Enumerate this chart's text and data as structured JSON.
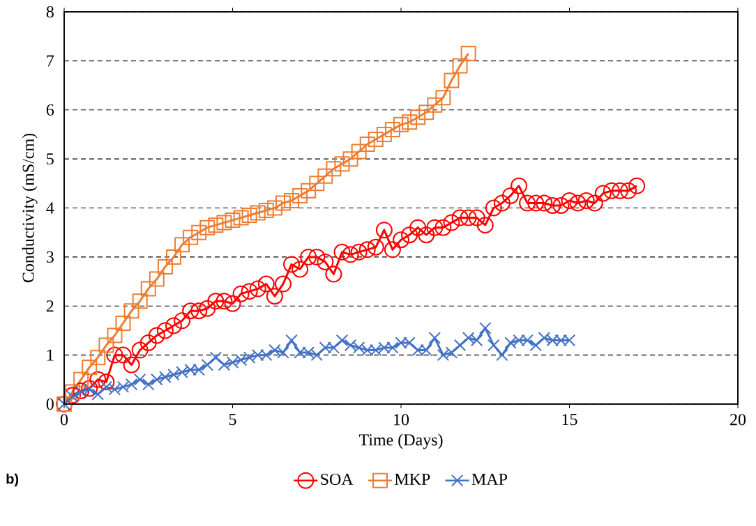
{
  "chart_data": {
    "type": "line",
    "xlabel": "Time (Days)",
    "ylabel": "Conductivity (mS/cm)",
    "annotations": [
      "b)"
    ],
    "xlim": [
      0,
      20
    ],
    "xticks": [
      0,
      5,
      10,
      15,
      20
    ],
    "ylim": [
      0,
      8
    ],
    "yticks": [
      0,
      1,
      2,
      3,
      4,
      5,
      6,
      7,
      8
    ],
    "grid": "y",
    "legend": "bottom",
    "line_style": "solid",
    "series": [
      {
        "name": "SOA",
        "color": "#ff0000",
        "marker": "circle",
        "x": [
          0,
          0.25,
          0.5,
          0.75,
          1,
          1.25,
          1.5,
          1.75,
          2,
          2.25,
          2.5,
          2.75,
          3,
          3.25,
          3.5,
          3.75,
          4,
          4.25,
          4.5,
          4.75,
          5,
          5.25,
          5.5,
          5.75,
          6,
          6.25,
          6.5,
          6.75,
          7,
          7.25,
          7.5,
          7.75,
          8,
          8.25,
          8.5,
          8.75,
          9,
          9.25,
          9.5,
          9.75,
          10,
          10.25,
          10.5,
          10.75,
          11,
          11.25,
          11.5,
          11.75,
          12,
          12.25,
          12.5,
          12.75,
          13,
          13.25,
          13.5,
          13.75,
          14,
          14.25,
          14.5,
          14.75,
          15,
          15.25,
          15.5,
          15.75,
          16,
          16.25,
          16.5,
          16.75,
          17
        ],
        "values": [
          0,
          0.18,
          0.27,
          0.32,
          0.5,
          0.45,
          1.0,
          1.0,
          0.8,
          1.1,
          1.25,
          1.4,
          1.5,
          1.6,
          1.7,
          1.9,
          1.9,
          1.95,
          2.1,
          2.1,
          2.05,
          2.25,
          2.3,
          2.35,
          2.45,
          2.2,
          2.45,
          2.85,
          2.75,
          3.0,
          3.0,
          2.9,
          2.65,
          3.1,
          3.05,
          3.1,
          3.15,
          3.2,
          3.55,
          3.15,
          3.35,
          3.45,
          3.6,
          3.45,
          3.6,
          3.6,
          3.7,
          3.8,
          3.8,
          3.8,
          3.65,
          4.0,
          4.1,
          4.25,
          4.45,
          4.1,
          4.1,
          4.1,
          4.05,
          4.05,
          4.15,
          4.1,
          4.15,
          4.1,
          4.3,
          4.35,
          4.35,
          4.35,
          4.45
        ]
      },
      {
        "name": "MKP",
        "color": "#ed7d31",
        "marker": "square",
        "x": [
          0,
          0.25,
          0.5,
          0.75,
          1,
          1.25,
          1.5,
          1.75,
          2,
          2.25,
          2.5,
          2.75,
          3,
          3.25,
          3.5,
          3.75,
          4,
          4.25,
          4.5,
          4.75,
          5,
          5.25,
          5.5,
          5.75,
          6,
          6.25,
          6.5,
          6.75,
          7,
          7.25,
          7.5,
          7.75,
          8,
          8.25,
          8.5,
          8.75,
          9,
          9.25,
          9.5,
          9.75,
          10,
          10.25,
          10.5,
          10.75,
          11,
          11.25,
          11.5,
          11.75,
          12
        ],
        "values": [
          0,
          0.25,
          0.5,
          0.75,
          0.95,
          1.2,
          1.4,
          1.65,
          1.9,
          2.1,
          2.35,
          2.55,
          2.8,
          3.0,
          3.25,
          3.4,
          3.5,
          3.6,
          3.65,
          3.7,
          3.75,
          3.8,
          3.85,
          3.9,
          3.95,
          4.0,
          4.1,
          4.15,
          4.25,
          4.35,
          4.5,
          4.65,
          4.8,
          4.9,
          5.0,
          5.15,
          5.3,
          5.4,
          5.5,
          5.6,
          5.7,
          5.75,
          5.85,
          5.95,
          6.1,
          6.25,
          6.6,
          6.9,
          7.15
        ]
      },
      {
        "name": "MAP",
        "color": "#4472c4",
        "marker": "cross",
        "x": [
          0,
          0.25,
          0.5,
          0.75,
          1,
          1.25,
          1.5,
          1.75,
          2,
          2.25,
          2.5,
          2.75,
          3,
          3.25,
          3.5,
          3.75,
          4,
          4.25,
          4.5,
          4.75,
          5,
          5.25,
          5.5,
          5.75,
          6,
          6.25,
          6.5,
          6.75,
          7,
          7.25,
          7.5,
          7.75,
          8,
          8.25,
          8.5,
          8.75,
          9,
          9.25,
          9.5,
          9.75,
          10,
          10.25,
          10.5,
          10.75,
          11,
          11.25,
          11.5,
          11.75,
          12,
          12.25,
          12.5,
          12.75,
          13,
          13.25,
          13.5,
          13.75,
          14,
          14.25,
          14.5,
          14.75,
          15
        ],
        "values": [
          0,
          0.15,
          0.25,
          0.3,
          0.2,
          0.35,
          0.3,
          0.35,
          0.4,
          0.5,
          0.4,
          0.5,
          0.55,
          0.6,
          0.65,
          0.7,
          0.7,
          0.8,
          0.95,
          0.8,
          0.85,
          0.9,
          0.95,
          1.0,
          1.0,
          1.1,
          1.05,
          1.3,
          1.05,
          1.05,
          1.0,
          1.15,
          1.15,
          1.3,
          1.2,
          1.15,
          1.1,
          1.1,
          1.15,
          1.15,
          1.25,
          1.25,
          1.1,
          1.1,
          1.35,
          1.0,
          1.05,
          1.2,
          1.35,
          1.3,
          1.55,
          1.2,
          1.0,
          1.25,
          1.3,
          1.3,
          1.2,
          1.35,
          1.3,
          1.3,
          1.3
        ]
      }
    ]
  }
}
